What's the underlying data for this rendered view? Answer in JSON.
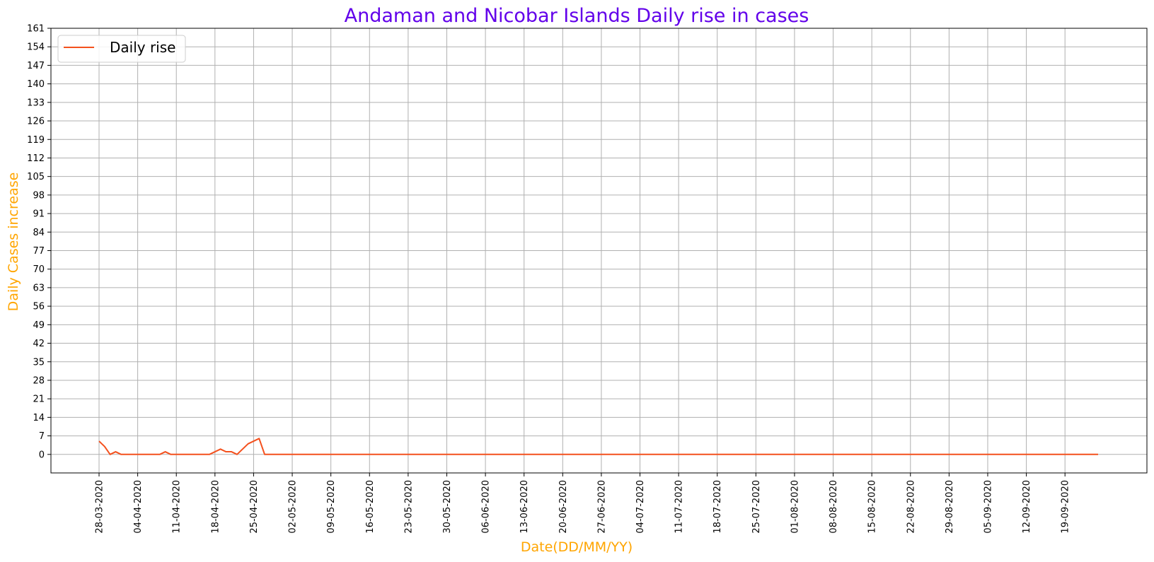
{
  "chart_data": {
    "type": "line",
    "title": "Andaman and Nicobar Islands Daily rise in cases",
    "xlabel": "Date(DD/MM/YY)",
    "ylabel": "Daily Cases increase",
    "x_tick_labels": [
      "28-03-2020",
      "04-04-2020",
      "11-04-2020",
      "18-04-2020",
      "25-04-2020",
      "02-05-2020",
      "09-05-2020",
      "16-05-2020",
      "23-05-2020",
      "30-05-2020",
      "06-06-2020",
      "13-06-2020",
      "20-06-2020",
      "27-06-2020",
      "04-07-2020",
      "11-07-2020",
      "18-07-2020",
      "25-07-2020",
      "01-08-2020",
      "08-08-2020",
      "15-08-2020",
      "22-08-2020",
      "29-08-2020",
      "05-09-2020",
      "12-09-2020",
      "19-09-2020"
    ],
    "y_ticks": [
      0,
      7,
      14,
      21,
      28,
      35,
      42,
      49,
      56,
      63,
      70,
      77,
      84,
      91,
      98,
      105,
      112,
      119,
      126,
      133,
      140,
      147,
      154,
      161
    ],
    "ylim": [
      -7,
      161
    ],
    "x_start_date": "28-03-2020",
    "x_end_date": "23-09-2020",
    "grid": true,
    "legend_position": "top-left",
    "series": [
      {
        "name": "Daily rise",
        "color": "#f4511e",
        "values": [
          5,
          3,
          0,
          1,
          0,
          0,
          0,
          0,
          0,
          0,
          0,
          0,
          1,
          0,
          0,
          0,
          0,
          0,
          0,
          0,
          0,
          1,
          2,
          1,
          1,
          0,
          2,
          4,
          5,
          6,
          0,
          0,
          0,
          0,
          0,
          0,
          0,
          0,
          0,
          0,
          0,
          0,
          0,
          0,
          0,
          0,
          0,
          0,
          0,
          0,
          0,
          0,
          0,
          0,
          0,
          0,
          0,
          0,
          0,
          0,
          0,
          0,
          0,
          0,
          0,
          0,
          0,
          0,
          0,
          0,
          0,
          0,
          0,
          0,
          0,
          0,
          0,
          0,
          0,
          0,
          0,
          0,
          0,
          0,
          0,
          0,
          0,
          0,
          0,
          0,
          0,
          0,
          0,
          0,
          0,
          0,
          0,
          0,
          0,
          0,
          0,
          0,
          0,
          0,
          0,
          0,
          0,
          0,
          0,
          0,
          0,
          0,
          0,
          0,
          0,
          0,
          0,
          0,
          0,
          0,
          0,
          0,
          0,
          0,
          0,
          0,
          0,
          0,
          0,
          0,
          0,
          0,
          0,
          0,
          0,
          0,
          0,
          0,
          0,
          0,
          0,
          0,
          0,
          0,
          0,
          0,
          0,
          0,
          0,
          0,
          0,
          0,
          0,
          0,
          0,
          0,
          0,
          0,
          0,
          0,
          0,
          0,
          0,
          0,
          0,
          0,
          0,
          0,
          0,
          0,
          0,
          0,
          0,
          0,
          0,
          0,
          0,
          0,
          0,
          0,
          0,
          0
        ]
      }
    ]
  },
  "colors": {
    "title": "#6200ea",
    "axis_labels": "#ffa500",
    "grid": "#b0b0b0",
    "line": "#f4511e"
  }
}
